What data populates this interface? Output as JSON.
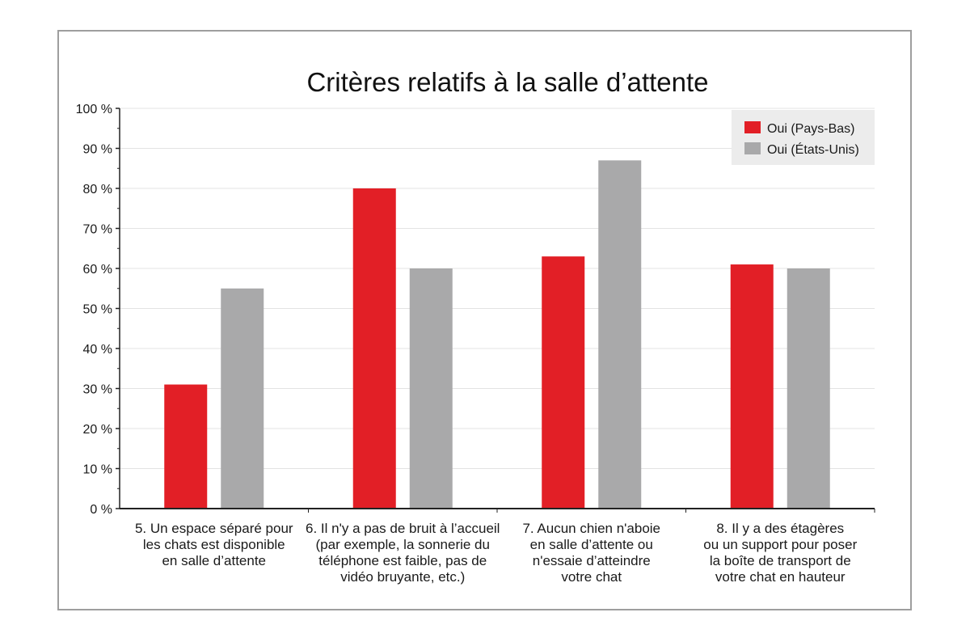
{
  "chart_data": {
    "type": "bar",
    "title": "Critères relatifs à la salle d’attente",
    "categories": [
      [
        "5. Un espace séparé pour",
        "les chats est disponible",
        "en salle d’attente"
      ],
      [
        "6. Il n'y a pas de bruit à l’accueil",
        "(par exemple, la sonnerie du",
        "téléphone est faible, pas de",
        "vidéo bruyante, etc.)"
      ],
      [
        "7. Aucun chien n'aboie",
        "en salle d’attente ou",
        "n'essaie d’atteindre",
        "votre chat"
      ],
      [
        "8. Il y a des étagères",
        "ou un support pour poser",
        "la boîte de transport de",
        "votre chat en hauteur"
      ]
    ],
    "series": [
      {
        "name": "Oui (Pays-Bas)",
        "color": "#e21f26",
        "values": [
          31,
          80,
          63,
          61
        ]
      },
      {
        "name": "Oui (États-Unis)",
        "color": "#a9a9aa",
        "values": [
          55,
          60,
          87,
          60
        ]
      }
    ],
    "yticks": [
      0,
      10,
      20,
      30,
      40,
      50,
      60,
      70,
      80,
      90,
      100
    ],
    "ytick_labels": [
      "0 %",
      "10 %",
      "20 %",
      "30 %",
      "40 %",
      "50 %",
      "60 %",
      "70 %",
      "80 %",
      "90 %",
      "100 %"
    ],
    "ylim": [
      0,
      100
    ],
    "grid": true,
    "legend_position": "top-right"
  }
}
